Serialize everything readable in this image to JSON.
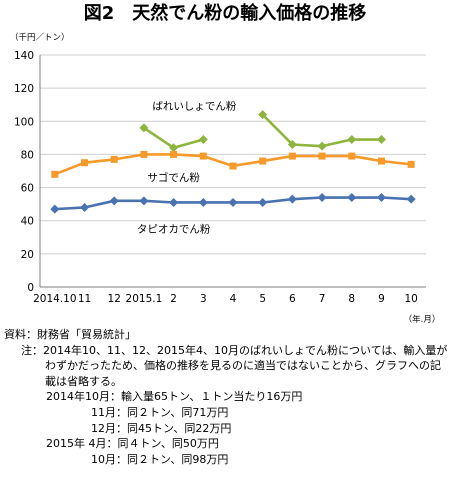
{
  "title": "図2　天然でん粉の輸入価格の推移",
  "chart_data": {
    "type": "line",
    "yunit": "（千円／トン）",
    "xunit": "（年.月）",
    "categories": [
      "2014.10",
      "11",
      "12",
      "2015.1",
      "2",
      "3",
      "4",
      "5",
      "6",
      "7",
      "8",
      "9",
      "10"
    ],
    "ylim": [
      0,
      140
    ],
    "yticks": [
      0,
      20,
      40,
      60,
      80,
      100,
      120,
      140
    ],
    "grid": true,
    "legend": "none (series labelled directly on the plot)",
    "series": [
      {
        "name": "ばれいしょでん粉",
        "color": "#8db43c",
        "marker": "diamond",
        "values": [
          null,
          null,
          null,
          96,
          84,
          89,
          null,
          104,
          86,
          85,
          89,
          89,
          null
        ]
      },
      {
        "name": "サゴでん粉",
        "color": "#f79a2a",
        "marker": "square",
        "values": [
          68,
          75,
          77,
          80,
          80,
          79,
          73,
          76,
          79,
          79,
          79,
          76,
          74
        ]
      },
      {
        "name": "タピオカでん粉",
        "color": "#4a72b0",
        "marker": "diamond",
        "values": [
          47,
          48,
          52,
          52,
          51,
          51,
          51,
          51,
          53,
          54,
          54,
          54,
          53
        ]
      }
    ]
  },
  "notes": {
    "source": "資料：財務省「貿易統計」",
    "note_head": "注：2014年10、11、12、2015年4、10月のばれいしょでん粉については、輸入量がわずかだったため、価格の推移を見るのに適当ではないことから、グラフへの記載は省略する。",
    "details": [
      "2014年10月：輸入量65トン、１トン当たり16万円",
      "11月：同２トン、同71万円",
      "12月：同45トン、同22万円",
      "2015年 4月：同４トン、同50万円",
      "10月：同２トン、同98万円"
    ]
  }
}
